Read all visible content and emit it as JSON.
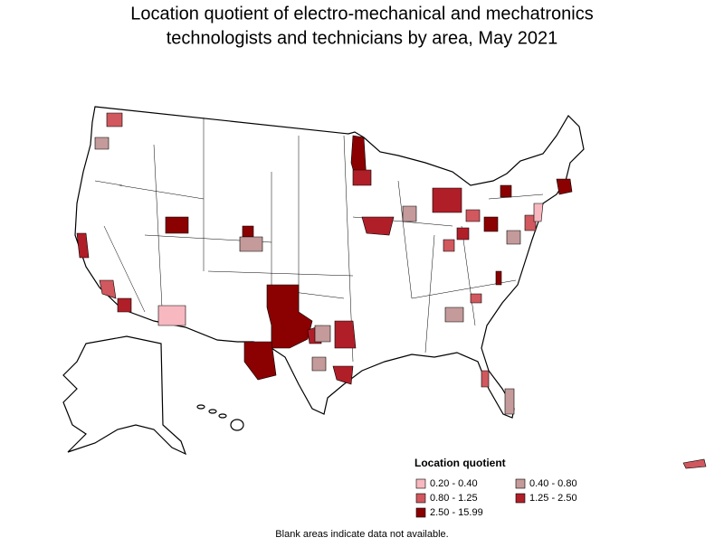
{
  "title": [
    "Location quotient of electro-mechanical and mechatronics",
    "technologists and technicians by area, May 2021"
  ],
  "legend": {
    "title": "Location quotient",
    "items": [
      {
        "label": "0.20 - 0.40",
        "color": "#f7b8c0"
      },
      {
        "label": "0.40 - 0.80",
        "color": "#c49a9a"
      },
      {
        "label": "0.80 - 1.25",
        "color": "#d0585e"
      },
      {
        "label": "1.25 - 2.50",
        "color": "#b01e28"
      },
      {
        "label": "2.50 - 15.99",
        "color": "#8b0000"
      }
    ]
  },
  "footnote": "Blank areas indicate data not available."
}
